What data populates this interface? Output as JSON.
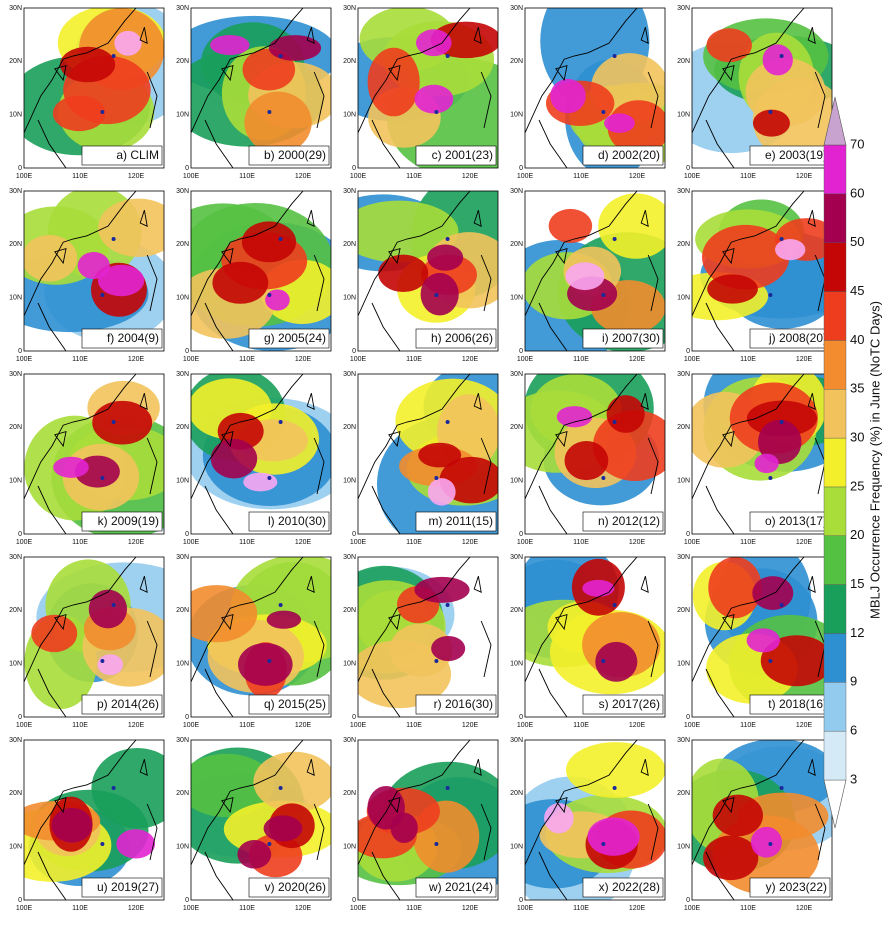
{
  "panels": [
    {
      "label": "a) CLIM"
    },
    {
      "label": "b) 2000(29)"
    },
    {
      "label": "c) 2001(23)"
    },
    {
      "label": "d) 2002(20)"
    },
    {
      "label": "e) 2003(19)"
    },
    {
      "label": "f) 2004(9)"
    },
    {
      "label": "g) 2005(24)"
    },
    {
      "label": "h) 2006(26)"
    },
    {
      "label": "i) 2007(30)"
    },
    {
      "label": "j) 2008(20)"
    },
    {
      "label": "k) 2009(19)"
    },
    {
      "label": "l) 2010(30)"
    },
    {
      "label": "m) 2011(15)"
    },
    {
      "label": "n) 2012(12)"
    },
    {
      "label": "o) 2013(17)"
    },
    {
      "label": "p) 2014(26)"
    },
    {
      "label": "q) 2015(25)"
    },
    {
      "label": "r) 2016(30)"
    },
    {
      "label": "s) 2017(26)"
    },
    {
      "label": "t) 2018(16)"
    },
    {
      "label": "u) 2019(27)"
    },
    {
      "label": "v) 2020(26)"
    },
    {
      "label": "w) 2021(24)"
    },
    {
      "label": "x) 2022(28)"
    },
    {
      "label": "y) 2023(22)"
    }
  ],
  "map_axes": {
    "lat_ticks": [
      "30N",
      "20N",
      "10N",
      "0"
    ],
    "lon_ticks": [
      "100E",
      "110E",
      "120E"
    ]
  },
  "colorbar": {
    "label": "MBLJ Occurrence Frequency (%) in June (NoTC Days)",
    "levels": [
      3,
      6,
      9,
      12,
      15,
      20,
      25,
      30,
      35,
      40,
      45,
      50,
      60,
      70
    ],
    "colors": [
      "#ffffff",
      "#d4ebf7",
      "#93cbee",
      "#2e8fd1",
      "#1a9f5a",
      "#55c143",
      "#a8dd3a",
      "#f3ef2a",
      "#f2c35c",
      "#f28c2e",
      "#ee3d1e",
      "#c40606",
      "#a3004f",
      "#e223d2",
      "#f9a6f2",
      "#c9a3cf"
    ]
  }
}
